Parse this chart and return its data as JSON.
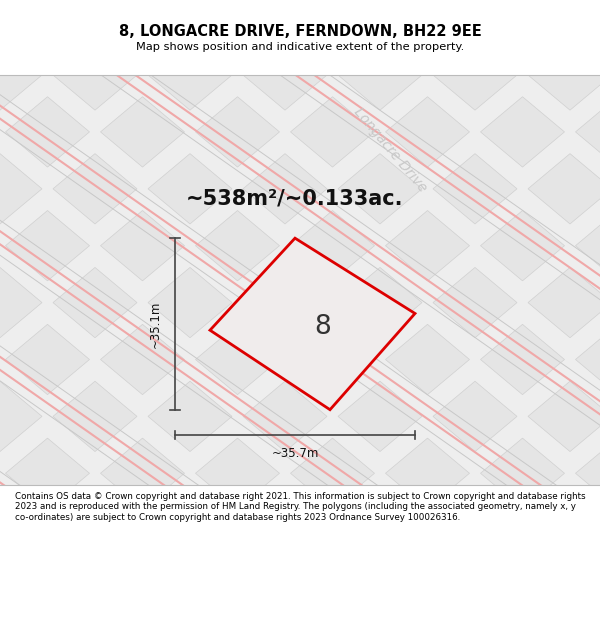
{
  "title": "8, LONGACRE DRIVE, FERNDOWN, BH22 9EE",
  "subtitle": "Map shows position and indicative extent of the property.",
  "area_text": "~538m²/~0.133ac.",
  "plot_number": "8",
  "dim_width": "~35.7m",
  "dim_height": "~35.1m",
  "road_label": "Longacre Drive",
  "footer": "Contains OS data © Crown copyright and database right 2021. This information is subject to Crown copyright and database rights 2023 and is reproduced with the permission of HM Land Registry. The polygons (including the associated geometry, namely x, y co-ordinates) are subject to Crown copyright and database rights 2023 Ordnance Survey 100026316.",
  "title_area_color": "#ffffff",
  "footer_area_color": "#ffffff",
  "map_bg": "#eeeeee",
  "tile_face": "#e5e5e5",
  "tile_edge": "#d0d0d0",
  "pink_color": "#f0a8a8",
  "gray_color": "#c8c8c8",
  "red_outline": "#dd0000",
  "plot_fill": "#f0ecec",
  "dim_color": "#444444"
}
